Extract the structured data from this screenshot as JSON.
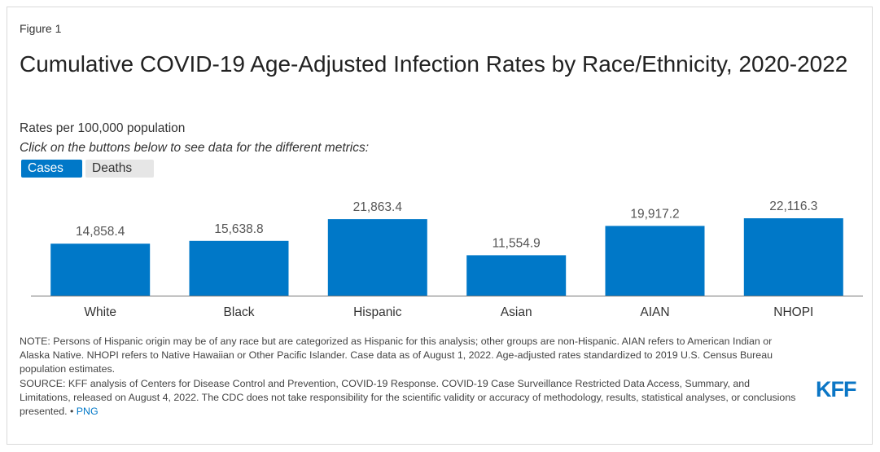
{
  "figure_label": "Figure 1",
  "title": "Cumulative COVID-19 Age-Adjusted Infection Rates by Race/Ethnicity, 2020-2022",
  "subtitle": "Rates per 100,000 population",
  "instruction": "Click on the buttons below to see data for the different metrics:",
  "buttons": {
    "cases": "Cases",
    "deaths": "Deaths"
  },
  "colors": {
    "bar": "#0078c8",
    "active_button": "#0078c8",
    "inactive_button": "#e6e6e6",
    "logo": "#0b76c5"
  },
  "chart_data": {
    "type": "bar",
    "categories": [
      "White",
      "Black",
      "Hispanic",
      "Asian",
      "AIAN",
      "NHOPI"
    ],
    "values": [
      14858.4,
      15638.8,
      21863.4,
      11554.9,
      19917.2,
      22116.3
    ],
    "value_labels": [
      "14,858.4",
      "15,638.8",
      "21,863.4",
      "11,554.9",
      "19,917.2",
      "22,116.3"
    ],
    "ylim": [
      0,
      22116.3
    ],
    "grid": false,
    "legend": "none"
  },
  "note": {
    "text": "NOTE: Persons of Hispanic origin may be of any race but are categorized as Hispanic for this analysis; other groups are non-Hispanic. AIAN refers to American Indian or Alaska Native. NHOPI refers to Native Hawaiian or Other Pacific Islander. Case data as of August 1, 2022. Age-adjusted rates standardized to 2019 U.S. Census Bureau population estimates.",
    "source": "SOURCE: KFF analysis of Centers for Disease Control and Prevention, COVID-19 Response. COVID-19 Case Surveillance Restricted Data Access, Summary, and Limitations, released on August 4, 2022. The CDC does not take responsibility for the scientific validity or accuracy of methodology, results, statistical analyses, or conclusions presented.",
    "separator": " • ",
    "png_link": "PNG"
  },
  "logo": "KFF"
}
